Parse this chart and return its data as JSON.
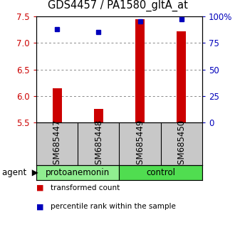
{
  "title": "GDS4457 / PA1580_gltA_at",
  "samples": [
    "GSM685447",
    "GSM685448",
    "GSM685449",
    "GSM685450"
  ],
  "transformed_counts": [
    6.15,
    5.75,
    7.45,
    7.22
  ],
  "percentile_ranks": [
    88,
    85,
    95,
    97
  ],
  "ylim_left": [
    5.5,
    7.5
  ],
  "ylim_right": [
    0,
    100
  ],
  "yticks_left": [
    5.5,
    6.0,
    6.5,
    7.0,
    7.5
  ],
  "yticks_right": [
    0,
    25,
    50,
    75,
    100
  ],
  "ytick_right_labels": [
    "0",
    "25",
    "50",
    "75",
    "100%"
  ],
  "groups": [
    {
      "label": "protoanemonin",
      "span": [
        0,
        2
      ],
      "color": "#90EE90"
    },
    {
      "label": "control",
      "span": [
        2,
        4
      ],
      "color": "#50DD50"
    }
  ],
  "bar_color": "#CC0000",
  "dot_color": "#0000BB",
  "bar_width": 0.22,
  "grid_color": "#888888",
  "sample_box_color": "#C8C8C8",
  "legend_items": [
    {
      "color": "#CC0000",
      "label": "transformed count"
    },
    {
      "color": "#0000BB",
      "label": "percentile rank within the sample"
    }
  ],
  "title_fontsize": 10.5,
  "tick_fontsize": 8.5,
  "label_fontsize": 8.5,
  "legend_fontsize": 7.5
}
